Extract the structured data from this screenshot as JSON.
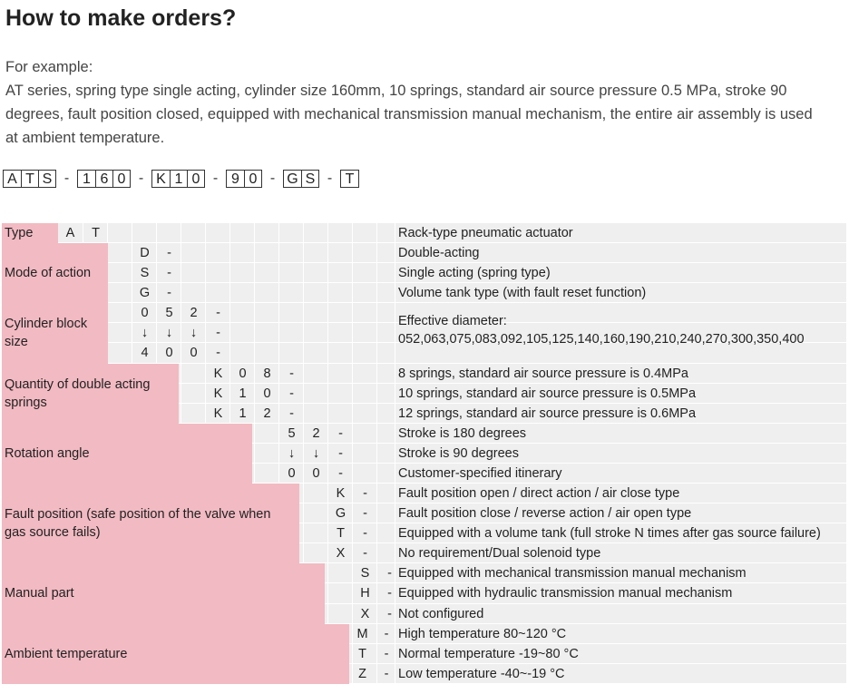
{
  "title": "How to make orders?",
  "intro": {
    "line1": "For example:",
    "line2": "AT series, spring type single acting, cylinder size 160mm, 10 springs, standard air source pressure 0.5 MPa, stroke 90",
    "line3": "degrees, fault position closed, equipped with mechanical transmission manual mechanism, the entire air assembly is used",
    "line4": "at ambient temperature."
  },
  "code_groups": [
    [
      "A",
      "T",
      "S"
    ],
    [
      "1",
      "6",
      "0"
    ],
    [
      "K",
      "1",
      "0"
    ],
    [
      "9",
      "0"
    ],
    [
      "G",
      "S"
    ],
    [
      "T"
    ]
  ],
  "code_separator": "-",
  "colors": {
    "pink": "#f2bac2",
    "grid": "#efefef"
  },
  "rows": [
    {
      "label": "",
      "cells": [],
      "desc": "Rack-type pneumatic actuator"
    },
    {
      "label": "",
      "cells": [
        "D",
        "-"
      ],
      "desc": "Double-acting"
    },
    {
      "label": "",
      "cells": [
        "S",
        "-"
      ],
      "desc": "Single acting (spring type)"
    },
    {
      "label": "",
      "cells": [
        "G",
        "-"
      ],
      "desc": "Volume tank type (with fault reset function)"
    },
    {
      "label": "",
      "cells": [
        "0",
        "5",
        "2",
        "-"
      ],
      "desc": ""
    },
    {
      "label": "",
      "cells": [
        "↓",
        "↓",
        "↓",
        "-"
      ],
      "desc": ""
    },
    {
      "label": "",
      "cells": [
        "4",
        "0",
        "0",
        "-"
      ],
      "desc": ""
    },
    {
      "label": "",
      "cells": [
        "K",
        "0",
        "8",
        "-"
      ],
      "desc": "8 springs, standard air source pressure is 0.4MPa"
    },
    {
      "label": "",
      "cells": [
        "K",
        "1",
        "0",
        "-"
      ],
      "desc": "10 springs, standard air source pressure is 0.5MPa"
    },
    {
      "label": "",
      "cells": [
        "K",
        "1",
        "2",
        "-"
      ],
      "desc": "12 springs, standard air source pressure is 0.6MPa"
    },
    {
      "label": "",
      "cells": [
        "5",
        "2",
        "-"
      ],
      "desc": "Stroke is 180 degrees"
    },
    {
      "label": "",
      "cells": [
        "↓",
        "↓",
        "-"
      ],
      "desc": "Stroke is 90 degrees"
    },
    {
      "label": "",
      "cells": [
        "0",
        "0",
        "-"
      ],
      "desc": "Customer-specified itinerary"
    },
    {
      "label": "",
      "cells": [
        "K",
        "-"
      ],
      "desc": "Fault position open / direct action / air close type"
    },
    {
      "label": "",
      "cells": [
        "G",
        "-"
      ],
      "desc": "Fault position close / reverse action / air open type"
    },
    {
      "label": "",
      "cells": [
        "T",
        "-"
      ],
      "desc": "Equipped with a volume tank (full stroke N times after gas source failure)"
    },
    {
      "label": "",
      "cells": [
        "X",
        "-"
      ],
      "desc": "No requirement/Dual solenoid type"
    },
    {
      "label": "",
      "cells": [
        "S",
        "-"
      ],
      "desc": "Equipped with mechanical transmission manual mechanism"
    },
    {
      "label": "",
      "cells": [
        "H",
        "-"
      ],
      "desc": "Equipped with hydraulic transmission manual mechanism"
    },
    {
      "label": "",
      "cells": [
        "X",
        "-"
      ],
      "desc": "Not configured"
    },
    {
      "label": "",
      "cells": [
        "M",
        "-"
      ],
      "desc": "High temperature 80~120 °C"
    },
    {
      "label": "",
      "cells": [
        "T",
        "-"
      ],
      "desc": "Normal temperature -19~80 °C"
    },
    {
      "label": "",
      "cells": [
        "Z",
        "-"
      ],
      "desc": "Low temperature -40~-19 °C"
    }
  ],
  "sections": [
    {
      "label": "Type",
      "cells": [
        "A",
        "T"
      ]
    },
    {
      "label": "Mode of action"
    },
    {
      "label": "Cylinder block size",
      "desc_lines": [
        "Effective diameter:",
        "052,063,075,083,092,105,125,140,160,190,210,240,270,300,350,400"
      ]
    },
    {
      "label": "Quantity of double acting springs"
    },
    {
      "label": "Rotation angle"
    },
    {
      "label": "Fault position (safe position of the valve when gas source fails)"
    },
    {
      "label": "Manual part"
    },
    {
      "label": "Ambient temperature"
    }
  ]
}
